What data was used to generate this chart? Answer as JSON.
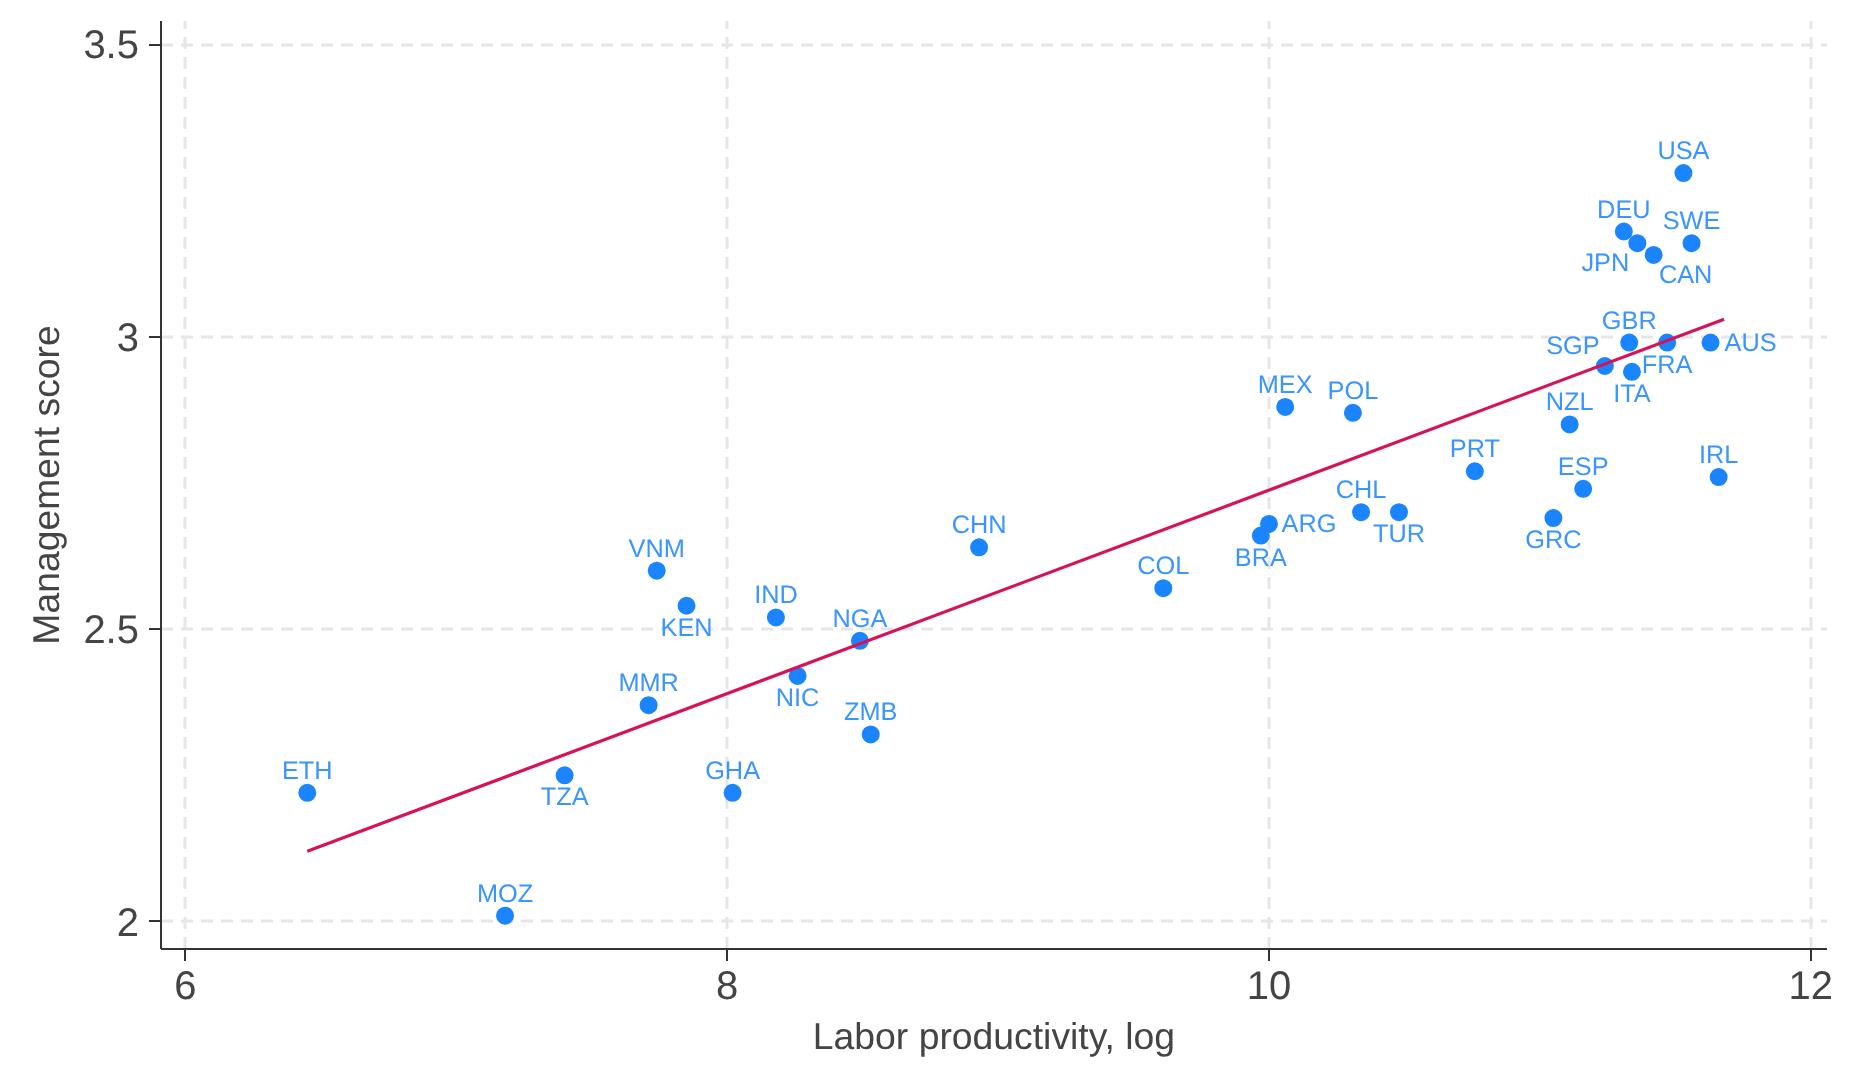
{
  "chart_data": {
    "type": "scatter",
    "xlabel": "Labor productivity, log",
    "ylabel": "Management score",
    "xlim": [
      5.91,
      12.06
    ],
    "ylim": [
      1.953,
      3.54
    ],
    "xticks": [
      6,
      8,
      10,
      12
    ],
    "yticks": [
      2,
      2.5,
      3,
      3.5
    ],
    "grid": true,
    "series": [
      {
        "color": "#1a85ff",
        "marker": "circle",
        "x": [
          6.45,
          7.18,
          7.4,
          7.71,
          7.74,
          7.85,
          8.02,
          8.18,
          8.26,
          8.49,
          8.53,
          8.93,
          9.61,
          9.97,
          10.0,
          10.06,
          10.31,
          10.34,
          10.48,
          10.76,
          11.05,
          11.16,
          11.11,
          11.24,
          11.34,
          11.33,
          11.47,
          11.63,
          11.66,
          11.31,
          11.36,
          11.42,
          11.56,
          11.53
        ],
        "values": [
          2.22,
          2.01,
          2.25,
          2.37,
          2.6,
          2.54,
          2.22,
          2.52,
          2.42,
          2.48,
          2.32,
          2.64,
          2.57,
          2.66,
          2.68,
          2.88,
          2.87,
          2.7,
          2.7,
          2.77,
          2.69,
          2.74,
          2.85,
          2.95,
          2.94,
          2.99,
          2.99,
          2.99,
          2.76,
          3.18,
          3.16,
          3.14,
          3.16,
          3.28
        ]
      },
      {
        "type": "line",
        "color": "#d6135a",
        "x": [
          6.45,
          11.68
        ],
        "values": [
          2.12,
          3.03
        ]
      }
    ],
    "annotations": [
      {
        "text": "ETH",
        "x": 6.45,
        "y": 2.22
      },
      {
        "text": "MOZ",
        "x": 7.18,
        "y": 2.01
      },
      {
        "text": "TZA",
        "x": 7.4,
        "y": 2.25
      },
      {
        "text": "MMR",
        "x": 7.71,
        "y": 2.37
      },
      {
        "text": "VNM",
        "x": 7.74,
        "y": 2.6
      },
      {
        "text": "KEN",
        "x": 7.85,
        "y": 2.54
      },
      {
        "text": "GHA",
        "x": 8.02,
        "y": 2.22
      },
      {
        "text": "IND",
        "x": 8.18,
        "y": 2.52
      },
      {
        "text": "NIC",
        "x": 8.26,
        "y": 2.42
      },
      {
        "text": "NGA",
        "x": 8.49,
        "y": 2.48
      },
      {
        "text": "ZMB",
        "x": 8.53,
        "y": 2.32
      },
      {
        "text": "CHN",
        "x": 8.93,
        "y": 2.64
      },
      {
        "text": "COL",
        "x": 9.61,
        "y": 2.57
      },
      {
        "text": "BRA",
        "x": 9.97,
        "y": 2.66
      },
      {
        "text": "ARG",
        "x": 10.0,
        "y": 2.68
      },
      {
        "text": "MEX",
        "x": 10.06,
        "y": 2.88
      },
      {
        "text": "POL",
        "x": 10.31,
        "y": 2.87
      },
      {
        "text": "CHL",
        "x": 10.34,
        "y": 2.7
      },
      {
        "text": "TUR",
        "x": 10.48,
        "y": 2.7
      },
      {
        "text": "PRT",
        "x": 10.76,
        "y": 2.77
      },
      {
        "text": "GRC",
        "x": 11.05,
        "y": 2.69
      },
      {
        "text": "ESP",
        "x": 11.16,
        "y": 2.74
      },
      {
        "text": "NZL",
        "x": 11.11,
        "y": 2.85
      },
      {
        "text": "SGP",
        "x": 11.24,
        "y": 2.95
      },
      {
        "text": "ITA",
        "x": 11.34,
        "y": 2.94
      },
      {
        "text": "GBR",
        "x": 11.33,
        "y": 2.99
      },
      {
        "text": "FRA",
        "x": 11.47,
        "y": 2.99
      },
      {
        "text": "AUS",
        "x": 11.63,
        "y": 2.99
      },
      {
        "text": "IRL",
        "x": 11.66,
        "y": 2.76
      },
      {
        "text": "DEU",
        "x": 11.31,
        "y": 3.18
      },
      {
        "text": "JPN",
        "x": 11.36,
        "y": 3.16
      },
      {
        "text": "CAN",
        "x": 11.42,
        "y": 3.14
      },
      {
        "text": "SWE",
        "x": 11.56,
        "y": 3.16
      },
      {
        "text": "USA",
        "x": 11.53,
        "y": 3.28
      }
    ]
  }
}
